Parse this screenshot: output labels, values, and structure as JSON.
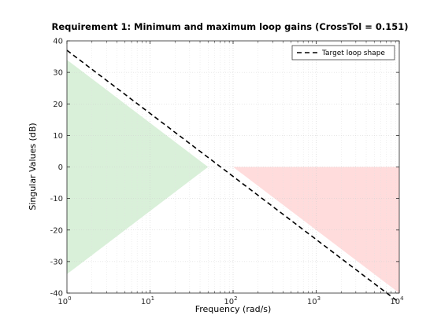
{
  "chart_data": {
    "type": "line",
    "title": "Requirement 1: Minimum and maximum loop gains (CrossTol = 0.151)",
    "xlabel": "Frequency (rad/s)",
    "ylabel": "Singular Values (dB)",
    "xscale": "log",
    "xlim": [
      1,
      10000
    ],
    "ylim": [
      -40,
      40
    ],
    "x_ticks": [
      {
        "base": "10",
        "exp": "0",
        "value": 1
      },
      {
        "base": "10",
        "exp": "1",
        "value": 10
      },
      {
        "base": "10",
        "exp": "2",
        "value": 100
      },
      {
        "base": "10",
        "exp": "3",
        "value": 1000
      },
      {
        "base": "10",
        "exp": "4",
        "value": 10000
      }
    ],
    "y_ticks": [
      -40,
      -30,
      -20,
      -10,
      0,
      10,
      20,
      30,
      40
    ],
    "grid": true,
    "legend_position": "top-right",
    "series": [
      {
        "name": "Target loop shape",
        "style": "dashed",
        "color": "#000000",
        "x": [
          1,
          10000
        ],
        "y": [
          37,
          -43
        ]
      }
    ],
    "regions": [
      {
        "kind": "minimum-gain",
        "color": "#d9f0d9",
        "points": [
          [
            1,
            34
          ],
          [
            50,
            0
          ],
          [
            1,
            -34
          ]
        ]
      },
      {
        "kind": "maximum-gain",
        "color": "#ffdcdc",
        "points": [
          [
            100,
            0
          ],
          [
            10000,
            0
          ],
          [
            10000,
            -40
          ]
        ]
      }
    ]
  }
}
